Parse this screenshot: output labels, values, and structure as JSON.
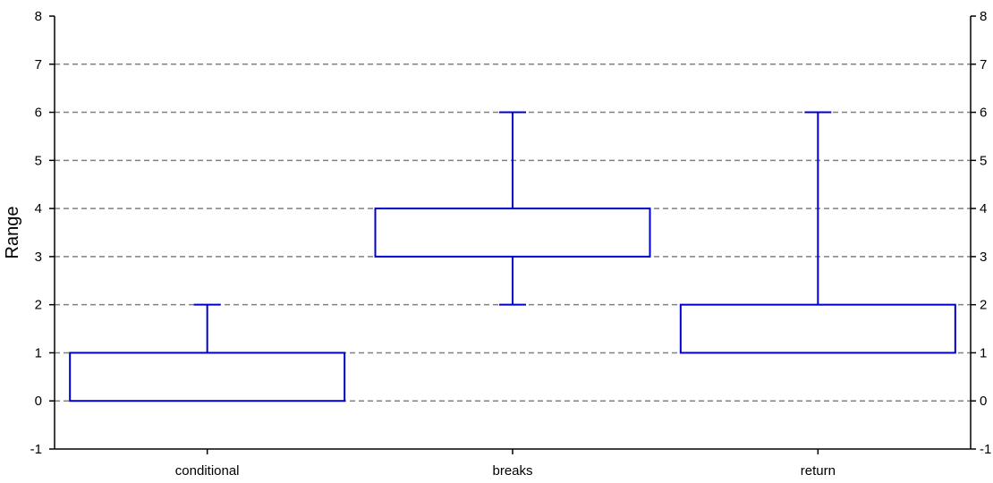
{
  "chart_data": {
    "type": "box",
    "title": "",
    "xlabel": "",
    "ylabel": "Range",
    "ylim": [
      -1,
      8
    ],
    "yticks": [
      -1,
      0,
      1,
      2,
      3,
      4,
      5,
      6,
      7,
      8
    ],
    "grid": "horizontal-dashed",
    "legend": "none",
    "categories": [
      "conditional",
      "breaks",
      "return"
    ],
    "boxes": [
      {
        "category": "conditional",
        "whisker_low": 0,
        "q1": 0,
        "q3": 1,
        "whisker_high": 2
      },
      {
        "category": "breaks",
        "whisker_low": 2,
        "q1": 3,
        "q3": 4,
        "whisker_high": 6
      },
      {
        "category": "return",
        "whisker_low": 1,
        "q1": 1,
        "q3": 2,
        "whisker_high": 6
      }
    ]
  },
  "colors": {
    "box": "#0000cc",
    "axis": "#000000",
    "grid": "#808080"
  }
}
